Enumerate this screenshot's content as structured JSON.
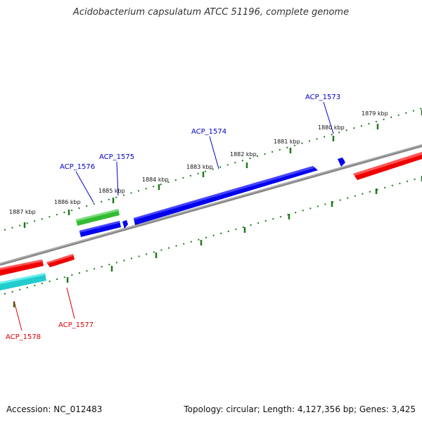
{
  "title": "Acidobacterium capsulatum ATCC 51196, complete genome",
  "footer": {
    "accession": "Accession: NC_012483",
    "summary": "Topology: circular; Length: 4,127,356 bp; Genes: 3,425"
  },
  "colors": {
    "backbone": "#888888",
    "tick": "#1e7a1e",
    "forward_cds": "#0000ee",
    "reverse_cds": "#ee0000",
    "rna": "#33bb33",
    "other": "#22cccc",
    "label_forward": "#0000cc",
    "label_reverse": "#dd0000"
  },
  "ticks": [
    {
      "label": "1887 kbp"
    },
    {
      "label": "1886 kbp"
    },
    {
      "label": "1885 kbp"
    },
    {
      "label": "1884 kbp"
    },
    {
      "label": "1883 kbp"
    },
    {
      "label": "1882 kbp"
    },
    {
      "label": "1881 kbp"
    },
    {
      "label": "1880 kbp"
    },
    {
      "label": "1879 kbp"
    }
  ],
  "genes": [
    {
      "label": "ACP_1573",
      "strand": "forward"
    },
    {
      "label": "ACP_1574",
      "strand": "forward"
    },
    {
      "label": "ACP_1575",
      "strand": "forward"
    },
    {
      "label": "ACP_1576",
      "strand": "forward"
    },
    {
      "label": "ACP_1577",
      "strand": "reverse"
    },
    {
      "label": "ACP_1578",
      "strand": "reverse"
    }
  ]
}
